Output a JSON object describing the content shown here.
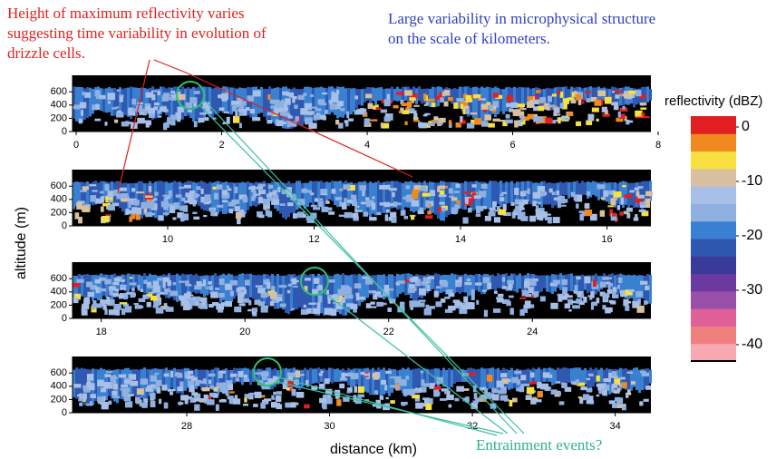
{
  "chart_data": {
    "type": "heatmap",
    "annotations": {
      "red": [
        "Height of maximum reflectivity varies",
        "suggesting time variability in evolution of",
        "drizzle cells."
      ],
      "blue": [
        "Large variability in microphysical structure",
        "on the scale of kilometers."
      ],
      "green": "Entrainment events?"
    },
    "y_label": "altitude (m)",
    "x_label": "distance (km)",
    "panels": [
      {
        "xlim": [
          -0.05,
          7.9
        ],
        "xticks": [
          0,
          2,
          4,
          6,
          8
        ],
        "ylim": [
          0,
          850
        ],
        "yticks": [
          0,
          200,
          400,
          600
        ]
      },
      {
        "xlim": [
          8.7,
          16.6
        ],
        "xticks": [
          10,
          12,
          14,
          16
        ],
        "ylim": [
          0,
          850
        ],
        "yticks": [
          0,
          200,
          400,
          600
        ]
      },
      {
        "xlim": [
          17.6,
          25.65
        ],
        "xticks": [
          18,
          20,
          22,
          24
        ],
        "ylim": [
          0,
          850
        ],
        "yticks": [
          0,
          200,
          400,
          600
        ]
      },
      {
        "xlim": [
          26.4,
          34.5
        ],
        "xticks": [
          28,
          30,
          32,
          34
        ],
        "ylim": [
          0,
          850
        ],
        "yticks": [
          0,
          200,
          400,
          600
        ]
      }
    ],
    "colorbar": {
      "label": "reflectivity (dBZ)",
      "lim": [
        -43,
        2
      ],
      "ticks": [
        0,
        -10,
        -20,
        -30,
        -40
      ],
      "colors": [
        "#f7a8b0",
        "#f08080",
        "#e0609a",
        "#9a4fa8",
        "#6a3aa0",
        "#3a3a9a",
        "#2f58b0",
        "#3a80d0",
        "#8fb0e0",
        "#a8c0e8",
        "#d8c0a0",
        "#f8e040",
        "#f08a20",
        "#e02020"
      ]
    }
  }
}
